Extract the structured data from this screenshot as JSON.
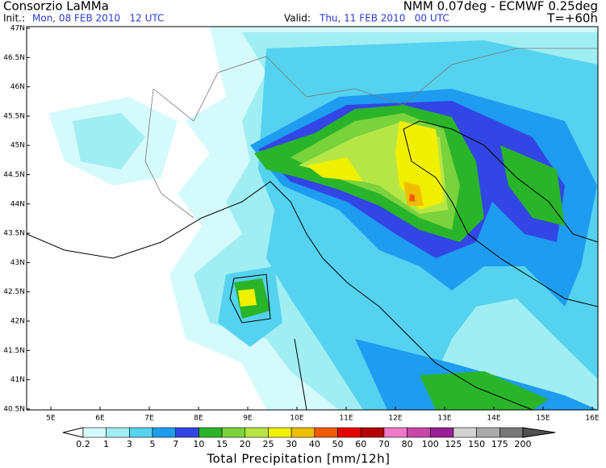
{
  "header": {
    "org": "Consorzio LaMMa",
    "model": "NMM 0.07deg - ECMWF 0.25deg",
    "init_label": "Init.:",
    "init": "Mon, 08 FEB 2010   12 UTC",
    "valid_label": "Valid:",
    "valid": "Thu, 11 FEB 2010   00 UTC",
    "lead": "T=+60h"
  },
  "map": {
    "lat_labels": [
      "47N",
      "46.5N",
      "46N",
      "45.5N",
      "45N",
      "44.5N",
      "44N",
      "43.5N",
      "43N",
      "42.5N",
      "42N",
      "41.5N",
      "41N",
      "40.5N"
    ],
    "lon_labels": [
      "5E",
      "6E",
      "7E",
      "8E",
      "9E",
      "10E",
      "11E",
      "12E",
      "13E",
      "14E",
      "15E",
      "16E"
    ]
  },
  "legend": {
    "levels": [
      0.2,
      1,
      3,
      5,
      7,
      10,
      15,
      20,
      25,
      30,
      40,
      50,
      60,
      70,
      80,
      100,
      125,
      150,
      175,
      200
    ],
    "colors": [
      "#ffffff",
      "#d4fafc",
      "#a0eef2",
      "#55d2f0",
      "#1e9cf0",
      "#3246e6",
      "#2ab42a",
      "#7ad23c",
      "#b6e646",
      "#f0f000",
      "#f0be00",
      "#f05a00",
      "#e60000",
      "#b40000",
      "#f078c8",
      "#c846aa",
      "#9b1e96",
      "#d2d2d2",
      "#aaaaaa",
      "#787878",
      "#505050"
    ],
    "title": "Total Precipitation [mm/12h]"
  }
}
